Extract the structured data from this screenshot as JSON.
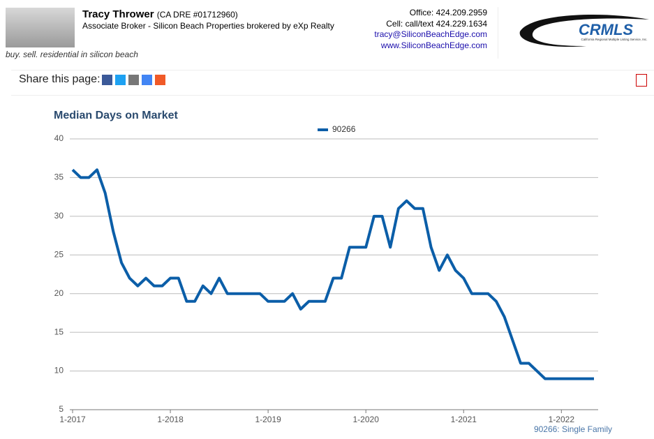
{
  "header": {
    "name": "Tracy Thrower",
    "license": "(CA DRE #01712960)",
    "role": "Associate Broker - Silicon Beach Properties brokered by eXp Realty",
    "tagline": "buy. sell. residential in silicon beach",
    "office": "Office: 424.209.2959",
    "cell": "Cell: call/text 424.229.1634",
    "email": "tracy@SiliconBeachEdge.com",
    "website": "www.SiliconBeachEdge.com",
    "logo": "CRMLS",
    "logo_subtitle": "California Regional Multiple Listing Service, Inc."
  },
  "share": {
    "label": "Share this page:"
  },
  "chart_data": {
    "type": "line",
    "title": "Median Days on Market",
    "categories": [
      "1-2017",
      null,
      null,
      null,
      null,
      null,
      null,
      null,
      null,
      null,
      null,
      null,
      "1-2018",
      null,
      null,
      null,
      null,
      null,
      null,
      null,
      null,
      null,
      null,
      null,
      "1-2019",
      null,
      null,
      null,
      null,
      null,
      null,
      null,
      null,
      null,
      null,
      null,
      "1-2020",
      null,
      null,
      null,
      null,
      null,
      null,
      null,
      null,
      null,
      null,
      null,
      "1-2021",
      null,
      null,
      null,
      null,
      null,
      null,
      null,
      null,
      null,
      null,
      null,
      "1-2022",
      null,
      null,
      null,
      null
    ],
    "series": [
      {
        "name": "90266",
        "color": "#0b5ea8",
        "values": [
          36,
          35,
          35,
          36,
          33,
          28,
          24,
          22,
          21,
          22,
          21,
          21,
          22,
          22,
          19,
          19,
          21,
          20,
          22,
          20,
          20,
          20,
          20,
          20,
          19,
          19,
          19,
          20,
          18,
          19,
          19,
          19,
          22,
          22,
          26,
          26,
          26,
          30,
          30,
          26,
          31,
          32,
          31,
          31,
          26,
          23,
          25,
          23,
          22,
          20,
          20,
          20,
          19,
          17,
          14,
          11,
          11,
          10,
          9,
          9,
          9,
          9,
          9,
          9,
          9
        ]
      }
    ],
    "ylim": [
      5,
      40
    ],
    "yticks": [
      5,
      10,
      15,
      20,
      25,
      30,
      35,
      40
    ],
    "grid": true,
    "footnote": "90266: Single Family"
  }
}
